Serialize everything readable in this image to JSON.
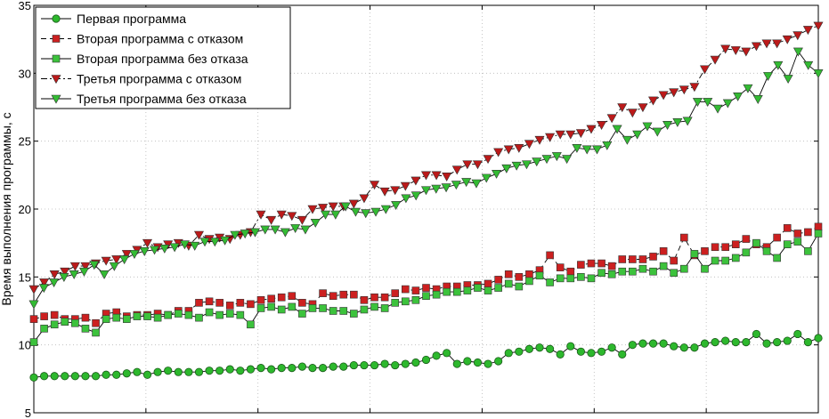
{
  "chart_data": {
    "type": "line",
    "title": "",
    "xlabel": "",
    "ylabel": "Время выполнения программы, с",
    "xlim": [
      0,
      70
    ],
    "ylim": [
      5,
      35
    ],
    "yticks": [
      5,
      10,
      15,
      20,
      25,
      30,
      35
    ],
    "x_ticks_visible": false,
    "grid": true,
    "legend_position": "top-left",
    "series": [
      {
        "name": "Первая программа",
        "color": "#2db82d",
        "marker": "circle",
        "line": "solid",
        "values": [
          7.6,
          7.7,
          7.7,
          7.7,
          7.7,
          7.7,
          7.7,
          7.8,
          7.8,
          7.9,
          8.0,
          7.8,
          8.0,
          8.1,
          8.0,
          8.0,
          8.0,
          8.1,
          8.1,
          8.2,
          8.1,
          8.2,
          8.3,
          8.2,
          8.3,
          8.3,
          8.4,
          8.3,
          8.3,
          8.4,
          8.4,
          8.5,
          8.5,
          8.5,
          8.6,
          8.5,
          8.6,
          8.7,
          8.9,
          9.2,
          9.4,
          8.6,
          8.8,
          8.7,
          8.6,
          8.8,
          9.4,
          9.5,
          9.7,
          9.8,
          9.7,
          9.3,
          9.9,
          9.5,
          9.4,
          9.5,
          9.8,
          9.3,
          10.0,
          10.1,
          10.1,
          10.1,
          9.9,
          9.8,
          9.8,
          10.1,
          10.2,
          10.3,
          10.2,
          10.2,
          10.8,
          10.1,
          10.2,
          10.3,
          10.8,
          10.2,
          10.5
        ]
      },
      {
        "name": "Вторая программа с отказом",
        "color": "#cc2020",
        "marker": "square",
        "line": "dashed",
        "values": [
          11.9,
          12.1,
          12.2,
          11.9,
          11.9,
          12.0,
          11.6,
          12.3,
          12.4,
          12.1,
          12.2,
          12.2,
          12.3,
          12.2,
          12.5,
          12.5,
          13.1,
          13.2,
          13.1,
          12.9,
          13.1,
          13.0,
          13.3,
          13.4,
          13.5,
          13.6,
          13.1,
          13.0,
          13.8,
          13.6,
          13.7,
          13.7,
          13.3,
          13.5,
          13.5,
          13.8,
          14.1,
          14.0,
          14.2,
          14.1,
          14.3,
          14.3,
          14.4,
          14.4,
          14.5,
          14.8,
          15.2,
          15.0,
          15.2,
          15.5,
          16.6,
          15.7,
          15.4,
          15.9,
          16.0,
          16.0,
          15.8,
          16.3,
          16.3,
          16.3,
          16.5,
          16.9,
          16.2,
          17.9,
          16.6,
          16.9,
          17.2,
          17.2,
          17.4,
          17.8,
          17.4,
          17.2,
          17.9,
          18.6,
          18.2,
          18.3,
          18.7
        ]
      },
      {
        "name": "Вторая программа без отказа",
        "color": "#3cc23c",
        "marker": "square",
        "line": "solid",
        "values": [
          10.2,
          11.2,
          11.5,
          11.7,
          11.6,
          11.2,
          10.9,
          11.9,
          12.0,
          11.9,
          12.1,
          12.1,
          12.0,
          12.2,
          12.3,
          12.2,
          12.0,
          12.4,
          12.2,
          12.3,
          12.2,
          11.5,
          12.7,
          12.8,
          12.6,
          12.8,
          12.3,
          12.7,
          12.7,
          12.5,
          12.5,
          12.3,
          12.6,
          12.8,
          12.7,
          13.1,
          13.2,
          13.3,
          13.6,
          13.7,
          13.9,
          13.9,
          14.0,
          14.2,
          14.0,
          14.2,
          14.5,
          14.3,
          14.7,
          15.1,
          14.6,
          14.9,
          14.9,
          15.0,
          14.9,
          15.3,
          15.2,
          15.4,
          15.4,
          15.6,
          15.4,
          15.8,
          15.3,
          15.6,
          16.7,
          15.6,
          16.2,
          16.2,
          16.4,
          16.8,
          17.5,
          16.9,
          16.4,
          17.4,
          17.6,
          16.9,
          18.2
        ]
      },
      {
        "name": "Третья программа с отказом",
        "color": "#bb1a1a",
        "marker": "triangle-down",
        "line": "dashdot",
        "values": [
          14.1,
          14.6,
          15.2,
          15.4,
          15.8,
          15.8,
          16.0,
          16.2,
          16.3,
          16.7,
          17.0,
          17.5,
          17.2,
          17.4,
          17.5,
          17.3,
          18.1,
          17.8,
          17.9,
          17.8,
          18.1,
          18.3,
          19.6,
          19.2,
          19.6,
          19.5,
          19.2,
          20.0,
          20.1,
          20.2,
          20.2,
          20.4,
          20.8,
          21.8,
          21.3,
          21.4,
          21.7,
          22.1,
          22.5,
          22.5,
          22.4,
          22.9,
          23.3,
          23.3,
          23.7,
          24.2,
          24.4,
          24.5,
          24.8,
          25.1,
          25.3,
          25.5,
          25.5,
          25.6,
          25.9,
          26.2,
          26.7,
          27.5,
          27.1,
          27.5,
          28.0,
          28.4,
          28.6,
          28.8,
          29.0,
          30.3,
          31.0,
          31.8,
          31.7,
          31.6,
          32.0,
          32.2,
          32.2,
          32.5,
          32.8,
          33.2,
          33.5
        ]
      },
      {
        "name": "Третья программа без отказа",
        "color": "#33bb33",
        "marker": "triangle-down",
        "line": "solid",
        "values": [
          13.0,
          14.2,
          14.6,
          15.0,
          15.2,
          15.4,
          15.9,
          15.2,
          15.8,
          16.3,
          16.7,
          16.9,
          17.0,
          17.1,
          17.2,
          17.4,
          17.3,
          17.6,
          17.6,
          17.7,
          18.1,
          18.2,
          18.3,
          18.5,
          18.5,
          18.3,
          18.6,
          18.5,
          19.0,
          19.6,
          19.6,
          20.2,
          19.8,
          19.7,
          19.8,
          20.0,
          20.3,
          20.8,
          21.0,
          21.4,
          21.5,
          21.6,
          21.8,
          22.0,
          21.9,
          22.3,
          22.6,
          23.0,
          23.2,
          23.3,
          23.5,
          23.7,
          23.9,
          23.7,
          24.5,
          24.4,
          24.4,
          24.7,
          25.9,
          25.1,
          25.5,
          26.1,
          25.7,
          26.2,
          26.4,
          26.5,
          27.9,
          27.9,
          27.4,
          27.8,
          28.3,
          28.9,
          28.1,
          29.8,
          30.6,
          29.6,
          31.6,
          30.6,
          30.0
        ]
      }
    ]
  }
}
